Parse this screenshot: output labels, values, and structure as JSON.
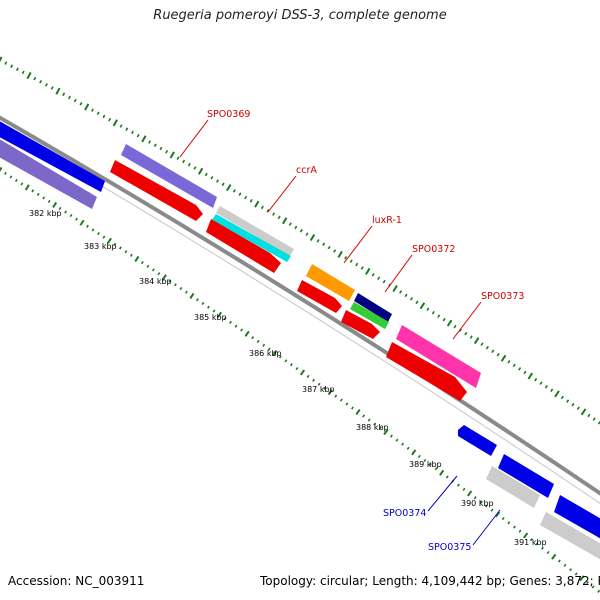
{
  "title": "Ruegeria pomeroyi DSS-3, complete genome",
  "footer": {
    "accession_label": "Accession: NC_003911",
    "summary": "Topology: circular; Length: 4,109,442 bp; Genes: 3,872; P"
  },
  "colors": {
    "backbone": "#8a8a8a",
    "tick_green": "#1a7a1a",
    "label_red": "#d00000",
    "label_blue": "#0000cc"
  },
  "scale_labels": [
    "382 kbp",
    "383 kbp",
    "384 kbp",
    "385 kbp",
    "386 kbp",
    "387 kbp",
    "388 kbp",
    "389 kbp",
    "390 kbp",
    "391 kbp"
  ],
  "gene_labels": [
    {
      "id": "SPO0369",
      "color": "red"
    },
    {
      "id": "ccrA",
      "color": "red"
    },
    {
      "id": "luxR-1",
      "color": "red"
    },
    {
      "id": "SPO0372",
      "color": "red"
    },
    {
      "id": "SPO0373",
      "color": "red"
    },
    {
      "id": "SPO0374",
      "color": "blue"
    },
    {
      "id": "SPO0375",
      "color": "blue"
    }
  ],
  "features": [
    {
      "name": "feature-blue-left-outer",
      "color": "#0000e6",
      "strand": "+"
    },
    {
      "name": "feature-purple-left-inner",
      "color": "#7b68c8",
      "strand": "+"
    },
    {
      "name": "feature-SPO0369-cds",
      "color": "#7b68d8",
      "strand": "+"
    },
    {
      "name": "feature-SPO0369-gene",
      "color": "#ee0000",
      "strand": "+"
    },
    {
      "name": "feature-ccrA-cds",
      "color": "#cccccc",
      "strand": "+"
    },
    {
      "name": "feature-ccrA-cds2",
      "color": "#00e0e0",
      "strand": "+"
    },
    {
      "name": "feature-ccrA-gene",
      "color": "#ee0000",
      "strand": "+"
    },
    {
      "name": "feature-luxR-1-cds",
      "color": "#ff9900",
      "strand": "+"
    },
    {
      "name": "feature-luxR-1-gene",
      "color": "#ee0000",
      "strand": "+"
    },
    {
      "name": "feature-SPO0372-cds",
      "color": "#000080",
      "strand": "+"
    },
    {
      "name": "feature-SPO0372-cds2",
      "color": "#33cc33",
      "strand": "+"
    },
    {
      "name": "feature-SPO0372-gene",
      "color": "#ee0000",
      "strand": "+"
    },
    {
      "name": "feature-SPO0373-cds",
      "color": "#ff33aa",
      "strand": "+"
    },
    {
      "name": "feature-SPO0373-gene",
      "color": "#ee0000",
      "strand": "+"
    },
    {
      "name": "feature-SPO0374-cds",
      "color": "#0000e6",
      "strand": "+"
    },
    {
      "name": "feature-SPO0374-cds2",
      "color": "#0000e6",
      "strand": "+"
    },
    {
      "name": "feature-SPO0375-gene",
      "color": "#cccccc",
      "strand": "+"
    },
    {
      "name": "feature-right-blue",
      "color": "#0000e6",
      "strand": "+"
    },
    {
      "name": "feature-right-gray",
      "color": "#cccccc",
      "strand": "+"
    }
  ]
}
